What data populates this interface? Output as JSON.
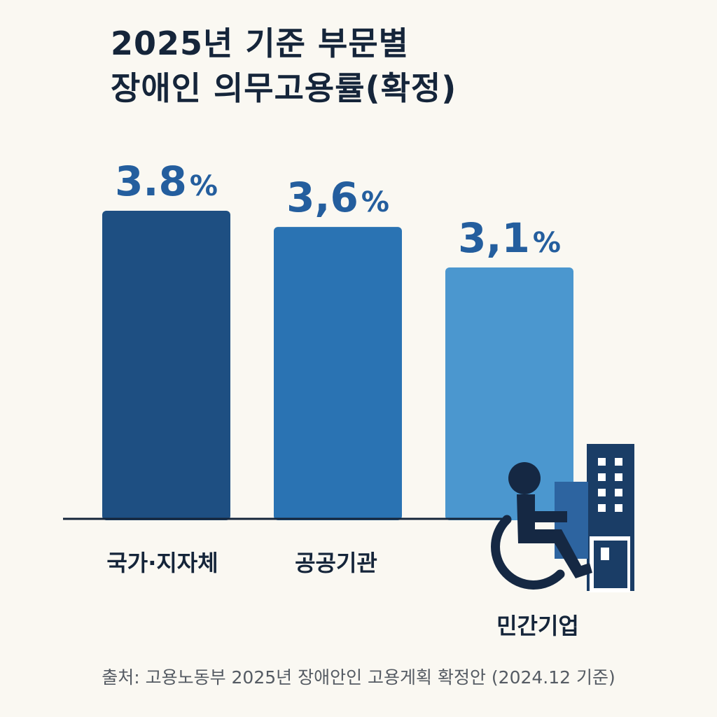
{
  "title": {
    "line1": "2025년 기준 부문별",
    "line2": "장애인 의무고용률(확정)"
  },
  "chart_data": {
    "type": "bar",
    "title": "2025년 기준 부문별 장애인 의무고용률(확정)",
    "categories": [
      "국가·지자체",
      "공공기관",
      "민간기업"
    ],
    "values": [
      3.8,
      3.6,
      3.1
    ],
    "value_labels": [
      "3.8",
      "3,6",
      "3,1"
    ],
    "unit": "%",
    "colors": [
      "#1e4f82",
      "#2a73b3",
      "#4b97cf"
    ],
    "label_color": "#245e9e",
    "ylim": [
      0,
      3.8
    ],
    "xlabel": "",
    "ylabel": ""
  },
  "icon": "wheelchair-building-icon",
  "source": "출처: 고용노동부 2025년 장애안인 고용게획 확정안 (2024.12 기준)"
}
